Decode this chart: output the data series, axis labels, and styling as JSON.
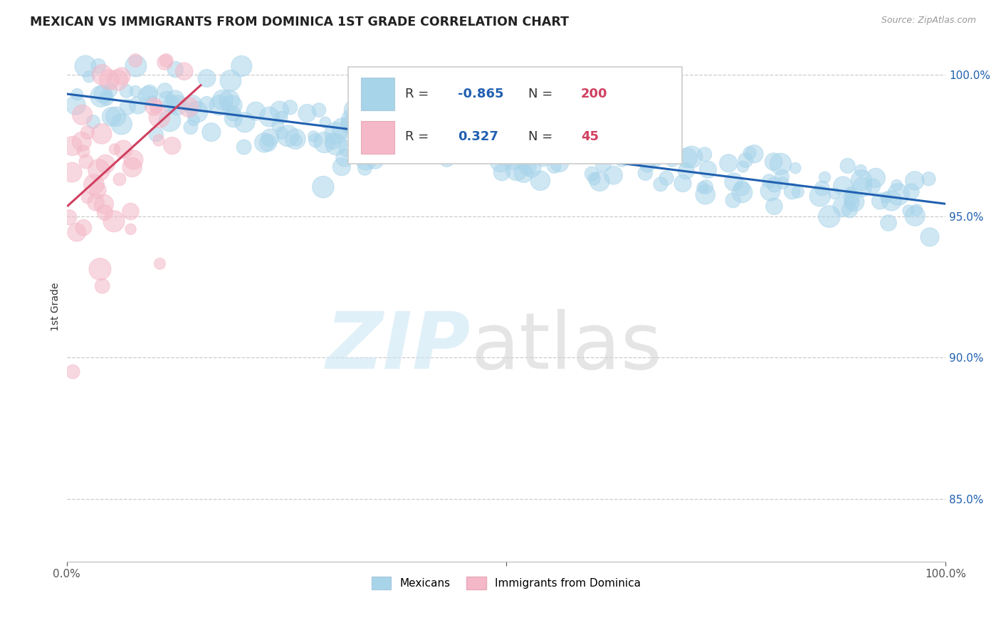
{
  "title": "MEXICAN VS IMMIGRANTS FROM DOMINICA 1ST GRADE CORRELATION CHART",
  "source_text": "Source: ZipAtlas.com",
  "ylabel": "1st Grade",
  "xlim": [
    0.0,
    1.0
  ],
  "ylim": [
    0.828,
    1.008
  ],
  "yticks": [
    0.85,
    0.9,
    0.95,
    1.0
  ],
  "ytick_labels": [
    "85.0%",
    "90.0%",
    "95.0%",
    "100.0%"
  ],
  "xticks": [
    0.0,
    0.5,
    1.0
  ],
  "xtick_labels": [
    "0.0%",
    "",
    "100.0%"
  ],
  "legend_blue_r": "-0.865",
  "legend_blue_n": "200",
  "legend_pink_r": "0.327",
  "legend_pink_n": "45",
  "blue_color": "#a8d4ea",
  "pink_color": "#f4b8c8",
  "blue_line_color": "#2060b0",
  "pink_line_color": "#d04060",
  "blue_scatter_seed": 42,
  "pink_scatter_seed": 7,
  "background_color": "#ffffff",
  "grid_color": "#cccccc",
  "legend_r_color": "#2060b0",
  "legend_n_color": "#d04060"
}
